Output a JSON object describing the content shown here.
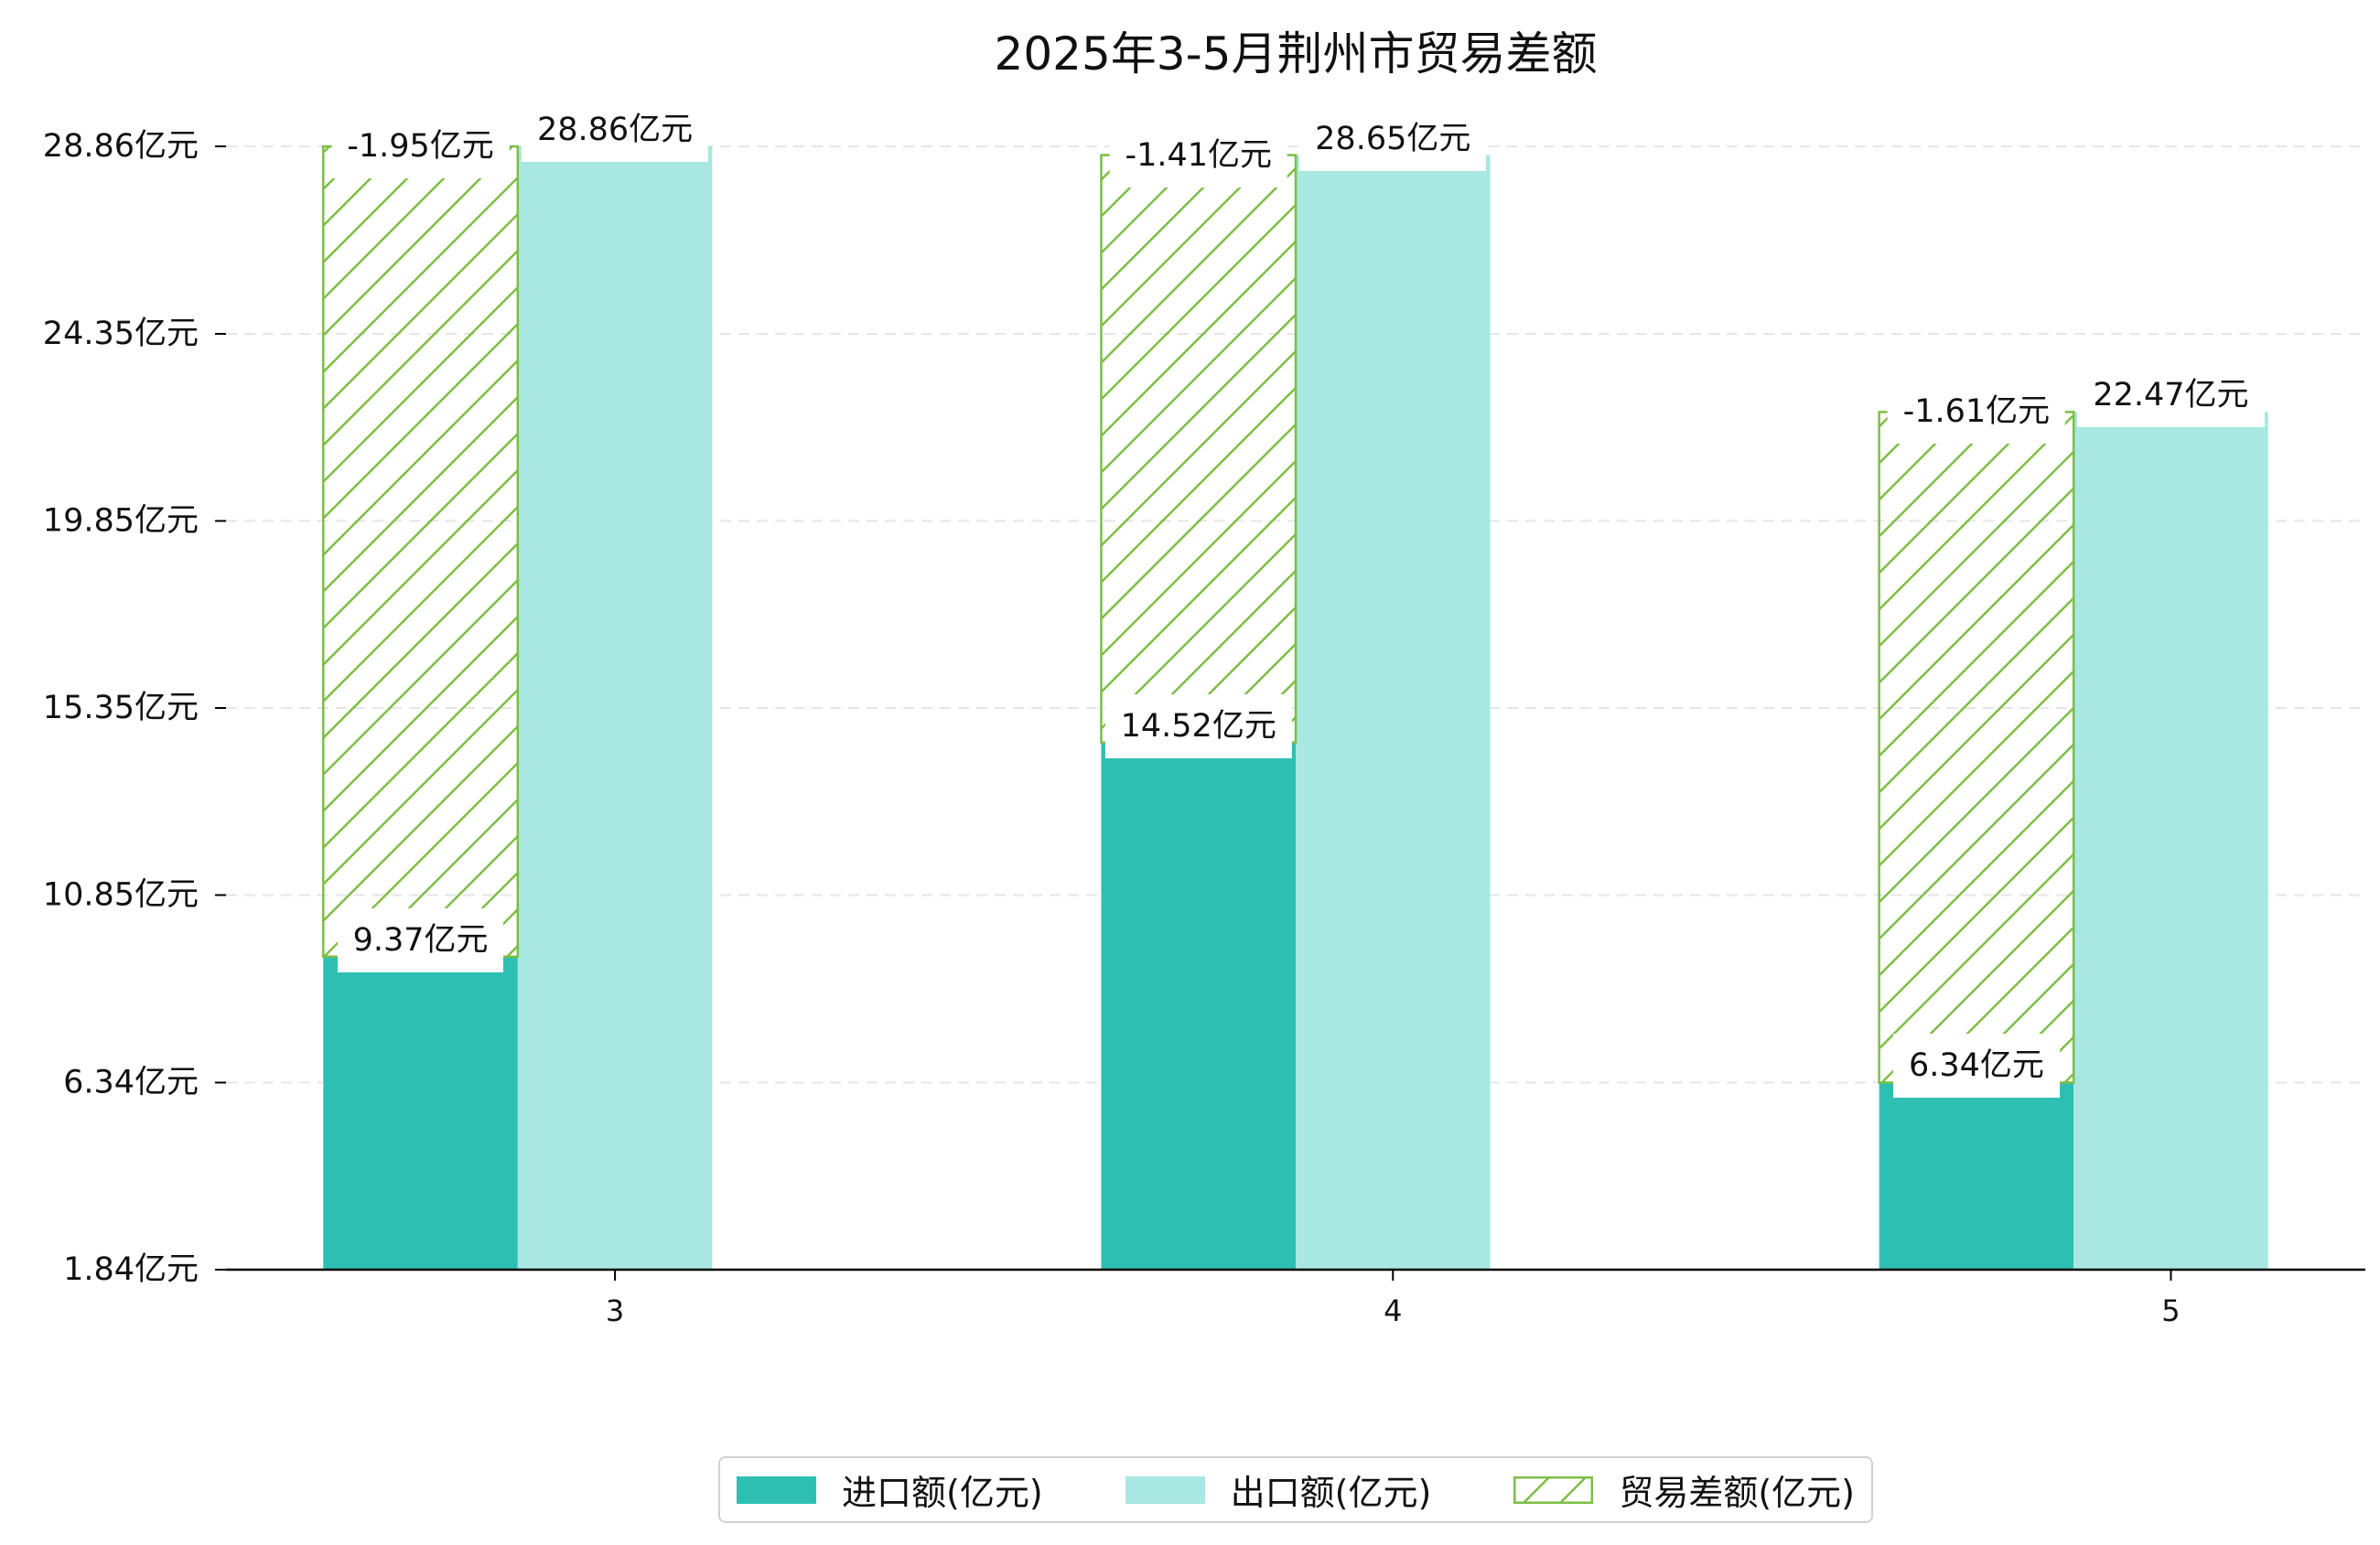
{
  "chart_data": {
    "type": "bar",
    "title": "2025年3-5月荆州市贸易差额",
    "xlabel": "",
    "ylabel": "",
    "categories": [
      "3",
      "4",
      "5"
    ],
    "ylim": [
      1.84,
      28.86
    ],
    "yticks": [
      1.84,
      6.34,
      10.85,
      15.35,
      19.85,
      24.35,
      28.86
    ],
    "ytick_labels": [
      "1.84亿元",
      "6.34亿元",
      "10.85亿元",
      "15.35亿元",
      "19.85亿元",
      "24.35亿元",
      "28.86亿元"
    ],
    "grid": {
      "y": true,
      "x": false,
      "style": "dashed"
    },
    "legend": {
      "placement": "bottom-center"
    },
    "series": [
      {
        "name": "进口额(亿元)",
        "values": [
          9.37,
          14.52,
          6.34
        ],
        "labels": [
          "9.37亿元",
          "14.52亿元",
          "6.34亿元"
        ],
        "color": "#2EBFB3"
      },
      {
        "name": "出口额(亿元)",
        "values": [
          28.86,
          28.65,
          22.47
        ],
        "labels": [
          "28.86亿元",
          "28.65亿元",
          "22.47亿元"
        ],
        "color": "#A8E7E2"
      },
      {
        "name": "贸易差额(亿元)",
        "values": [
          -1.95,
          -1.41,
          -1.61
        ],
        "labels": [
          "-1.95亿元",
          "-1.41亿元",
          "-1.61亿元"
        ],
        "color": "#7DBE44",
        "pattern": "diagonal-hatch"
      }
    ]
  }
}
